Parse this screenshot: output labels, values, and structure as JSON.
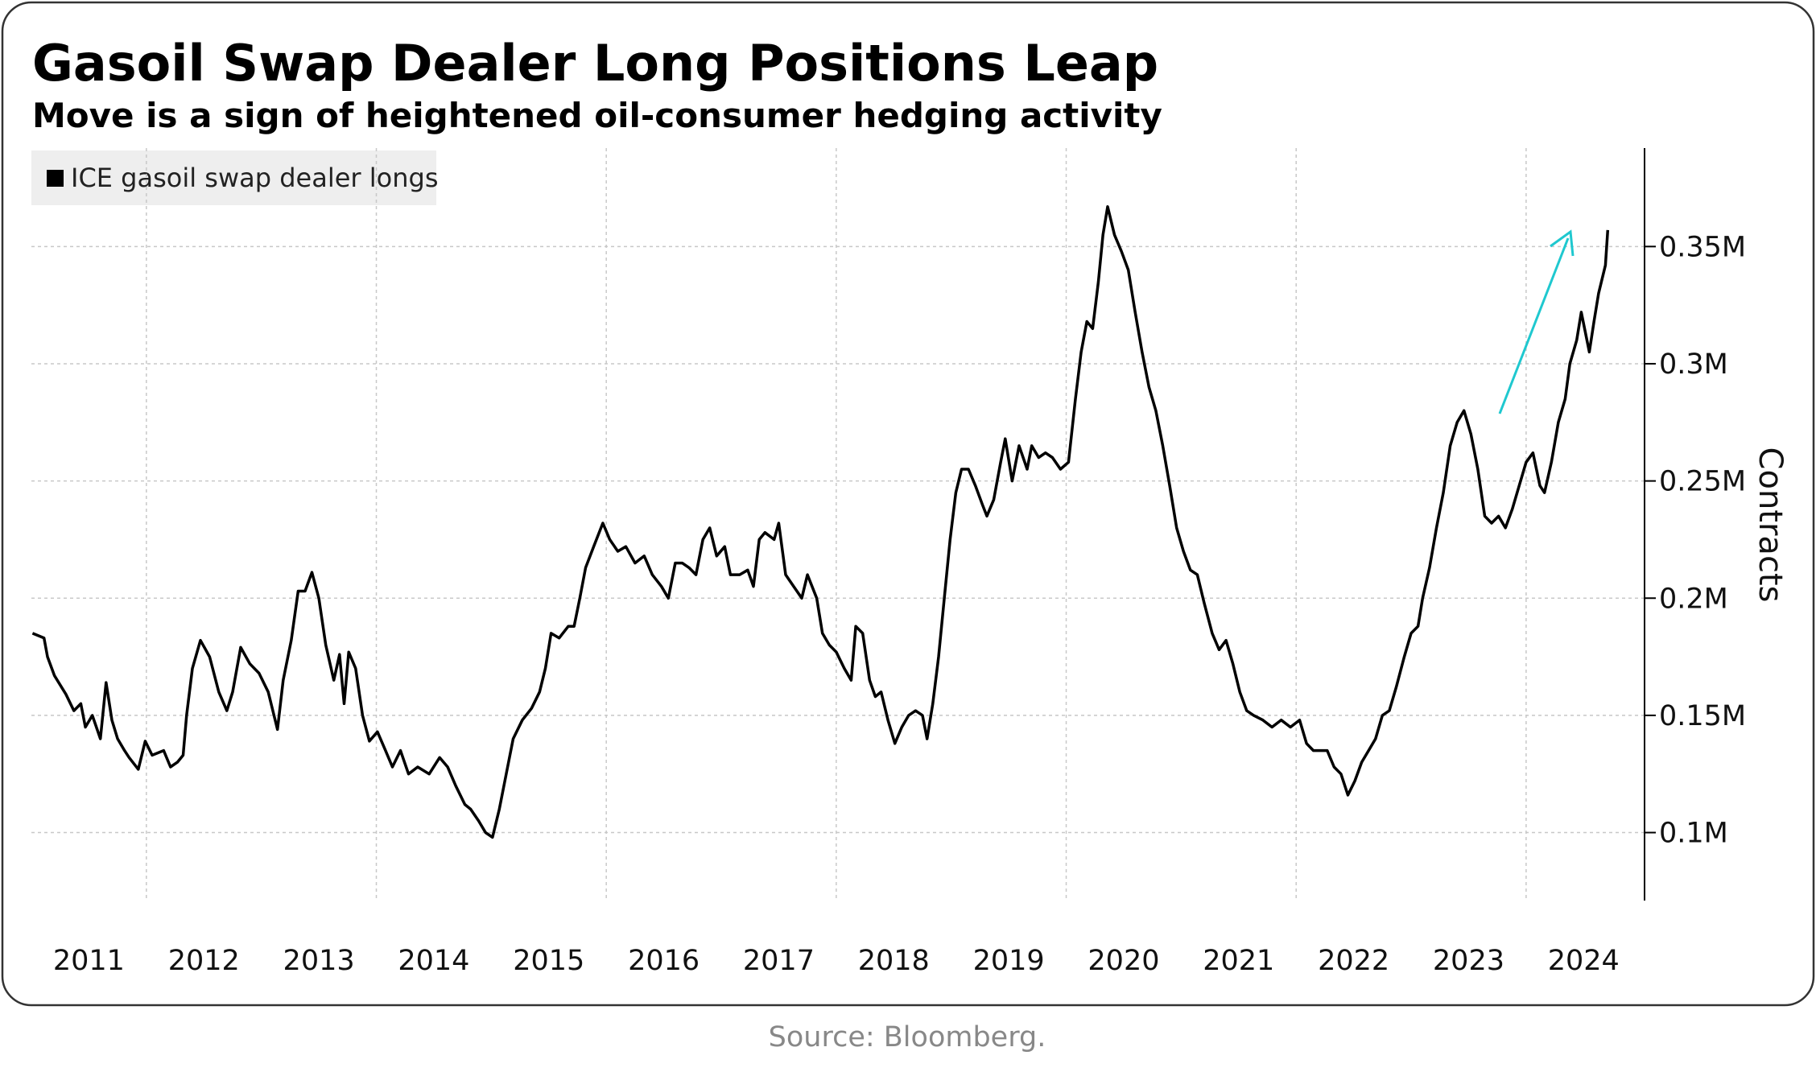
{
  "chart_data": {
    "type": "line",
    "title": "Gasoil Swap Dealer Long Positions Leap",
    "subtitle": "Move is a sign of heightened oil-consumer hedging activity",
    "y_axis_label": "Contracts",
    "source": "Source: Bloomberg.",
    "xlim": [
      2011,
      2025.03
    ],
    "xticks": [
      {
        "value": 2011.5,
        "label": "2011"
      },
      {
        "value": 2012.5,
        "label": "2012"
      },
      {
        "value": 2013.5,
        "label": "2013"
      },
      {
        "value": 2014.5,
        "label": "2014"
      },
      {
        "value": 2015.5,
        "label": "2015"
      },
      {
        "value": 2016.5,
        "label": "2016"
      },
      {
        "value": 2017.5,
        "label": "2017"
      },
      {
        "value": 2018.5,
        "label": "2018"
      },
      {
        "value": 2019.5,
        "label": "2019"
      },
      {
        "value": 2020.5,
        "label": "2020"
      },
      {
        "value": 2021.5,
        "label": "2021"
      },
      {
        "value": 2022.5,
        "label": "2022"
      },
      {
        "value": 2023.5,
        "label": "2023"
      },
      {
        "value": 2024.5,
        "label": "2024"
      }
    ],
    "xgrid": [
      2012,
      2014,
      2016,
      2018,
      2020,
      2022,
      2024
    ],
    "ylim": [
      71000,
      392000
    ],
    "yticks": [
      {
        "value": 100000,
        "label": "0.1M"
      },
      {
        "value": 150000,
        "label": "0.15M"
      },
      {
        "value": 200000,
        "label": "0.2M"
      },
      {
        "value": 250000,
        "label": "0.25M"
      },
      {
        "value": 300000,
        "label": "0.3M"
      },
      {
        "value": 350000,
        "label": "0.35M"
      }
    ],
    "grid": true,
    "legend": "top-left",
    "x": [
      2011.01,
      2011.11,
      2011.14,
      2011.2,
      2011.3,
      2011.37,
      2011.43,
      2011.47,
      2011.53,
      2011.6,
      2011.65,
      2011.7,
      2011.75,
      2011.81,
      2011.85,
      2011.93,
      2011.99,
      2012.05,
      2012.15,
      2012.21,
      2012.27,
      2012.32,
      2012.35,
      2012.4,
      2012.47,
      2012.55,
      2012.63,
      2012.7,
      2012.75,
      2012.82,
      2012.9,
      2012.98,
      2013.06,
      2013.14,
      2013.19,
      2013.26,
      2013.32,
      2013.38,
      2013.44,
      2013.5,
      2013.56,
      2013.63,
      2013.68,
      2013.72,
      2013.76,
      2013.82,
      2013.88,
      2013.94,
      2014.01,
      2014.08,
      2014.14,
      2014.21,
      2014.28,
      2014.36,
      2014.46,
      2014.55,
      2014.62,
      2014.69,
      2014.77,
      2014.82,
      2014.89,
      2014.95,
      2015.01,
      2015.07,
      2015.13,
      2015.19,
      2015.27,
      2015.35,
      2015.42,
      2015.47,
      2015.52,
      2015.59,
      2015.67,
      2015.72,
      2015.77,
      2015.82,
      2015.89,
      2015.97,
      2016.03,
      2016.1,
      2016.17,
      2016.25,
      2016.33,
      2016.4,
      2016.48,
      2016.54,
      2016.6,
      2016.66,
      2016.72,
      2016.78,
      2016.84,
      2016.9,
      2016.96,
      2017.03,
      2017.08,
      2017.16,
      2017.23,
      2017.28,
      2017.33,
      2017.38,
      2017.46,
      2017.5,
      2017.56,
      2017.63,
      2017.7,
      2017.75,
      2017.83,
      2017.88,
      2017.94,
      2018.0,
      2018.07,
      2018.13,
      2018.17,
      2018.23,
      2018.29,
      2018.34,
      2018.39,
      2018.45,
      2018.51,
      2018.57,
      2018.63,
      2018.69,
      2018.75,
      2018.79,
      2018.84,
      2018.89,
      2018.94,
      2018.99,
      2019.04,
      2019.09,
      2019.15,
      2019.21,
      2019.27,
      2019.31,
      2019.37,
      2019.43,
      2019.47,
      2019.53,
      2019.59,
      2019.66,
      2019.7,
      2019.76,
      2019.82,
      2019.88,
      2019.95,
      2020.02,
      2020.08,
      2020.13,
      2020.18,
      2020.23,
      2020.28,
      2020.32,
      2020.36,
      2020.42,
      2020.48,
      2020.54,
      2020.6,
      2020.66,
      2020.72,
      2020.78,
      2020.84,
      2020.9,
      2020.96,
      2021.02,
      2021.08,
      2021.14,
      2021.2,
      2021.27,
      2021.33,
      2021.39,
      2021.45,
      2021.51,
      2021.57,
      2021.63,
      2021.71,
      2021.79,
      2021.87,
      2021.95,
      2022.03,
      2022.09,
      2022.15,
      2022.21,
      2022.27,
      2022.33,
      2022.39,
      2022.45,
      2022.51,
      2022.57,
      2022.63,
      2022.69,
      2022.75,
      2022.81,
      2022.87,
      2022.94,
      2023.0,
      2023.06,
      2023.1,
      2023.16,
      2023.22,
      2023.28,
      2023.34,
      2023.4,
      2023.46,
      2023.52,
      2023.58,
      2023.64,
      2023.7,
      2023.76,
      2023.82,
      2023.88,
      2023.94,
      2024.0,
      2024.06,
      2024.12,
      2024.16,
      2024.22,
      2024.28,
      2024.34,
      2024.38,
      2024.44,
      2024.48,
      2024.55,
      2024.59,
      2024.63,
      2024.69,
      2024.71
    ],
    "series": [
      {
        "name": "ICE gasoil swap dealer longs",
        "color": "#000000",
        "values": [
          185000,
          183000,
          175000,
          167000,
          159000,
          152000,
          155000,
          145000,
          150000,
          140000,
          164000,
          148000,
          140000,
          135000,
          132000,
          127000,
          139000,
          133000,
          135000,
          128000,
          130000,
          133000,
          150000,
          170000,
          182000,
          175000,
          160000,
          152000,
          160000,
          179000,
          172000,
          168000,
          160000,
          144000,
          165000,
          182000,
          203000,
          203000,
          211000,
          200000,
          180000,
          165000,
          176000,
          155000,
          177000,
          170000,
          150000,
          139000,
          143000,
          135000,
          128000,
          135000,
          125000,
          128000,
          125000,
          132000,
          128000,
          120000,
          112000,
          110000,
          105000,
          100000,
          98000,
          110000,
          125000,
          140000,
          148000,
          153000,
          160000,
          170000,
          185000,
          183000,
          188000,
          188000,
          200000,
          213000,
          222000,
          232000,
          225000,
          220000,
          222000,
          215000,
          218000,
          210000,
          205000,
          200000,
          215000,
          215000,
          213000,
          210000,
          225000,
          230000,
          218000,
          222000,
          210000,
          210000,
          212000,
          205000,
          225000,
          228000,
          225000,
          232000,
          210000,
          205000,
          200000,
          210000,
          200000,
          185000,
          180000,
          177000,
          170000,
          165000,
          188000,
          185000,
          165000,
          158000,
          160000,
          148000,
          138000,
          145000,
          150000,
          152000,
          150000,
          140000,
          155000,
          175000,
          200000,
          225000,
          245000,
          255000,
          255000,
          248000,
          240000,
          235000,
          242000,
          258000,
          268000,
          250000,
          265000,
          255000,
          265000,
          260000,
          262000,
          260000,
          255000,
          258000,
          285000,
          305000,
          318000,
          315000,
          335000,
          355000,
          367000,
          355000,
          348000,
          340000,
          322000,
          305000,
          290000,
          280000,
          265000,
          248000,
          230000,
          220000,
          212000,
          210000,
          198000,
          185000,
          178000,
          182000,
          172000,
          160000,
          152000,
          150000,
          148000,
          145000,
          148000,
          145000,
          148000,
          138000,
          135000,
          135000,
          135000,
          128000,
          125000,
          116000,
          122000,
          130000,
          135000,
          140000,
          150000,
          152000,
          162000,
          175000,
          185000,
          188000,
          200000,
          213000,
          230000,
          245000,
          265000,
          275000,
          280000,
          270000,
          255000,
          235000,
          232000,
          235000,
          230000,
          238000,
          248000,
          258000,
          262000,
          248000,
          245000,
          258000,
          275000,
          285000,
          300000,
          310000,
          322000,
          305000,
          318000,
          330000,
          342000,
          357000
        ]
      }
    ]
  }
}
